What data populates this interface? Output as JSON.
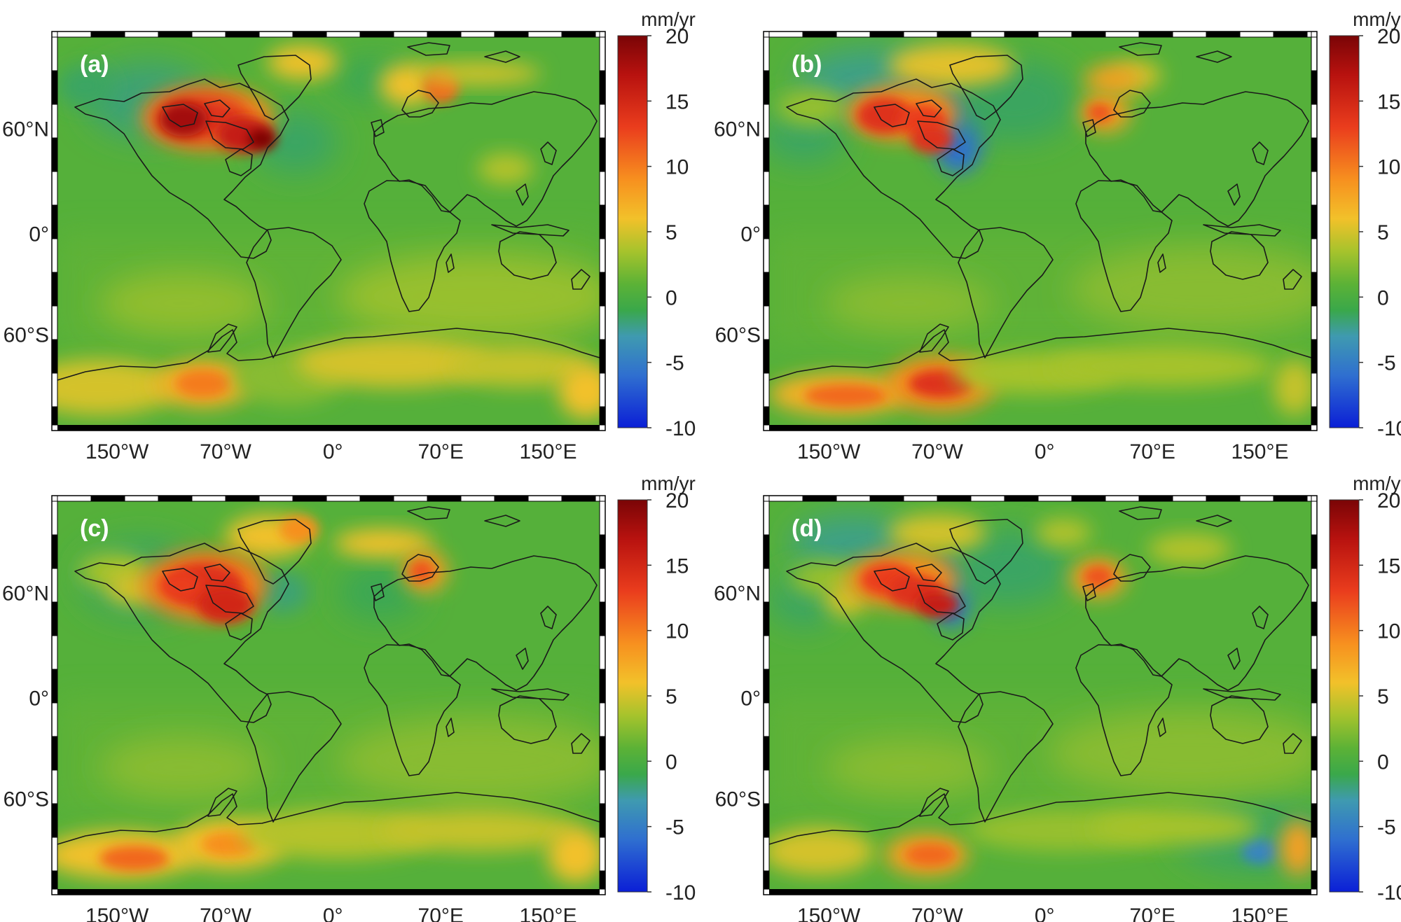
{
  "figure": {
    "panels": [
      {
        "id": "a",
        "label": "(a)"
      },
      {
        "id": "b",
        "label": "(b)"
      },
      {
        "id": "c",
        "label": "(c)"
      },
      {
        "id": "d",
        "label": "(d)"
      }
    ],
    "colorbar": {
      "unit": "mm/yr",
      "ticks": [
        "20",
        "15",
        "10",
        "5",
        "0",
        "-5",
        "-10"
      ],
      "range": [
        -10,
        20
      ],
      "stops": [
        {
          "v": -10,
          "c": "#0b1fd6"
        },
        {
          "v": -6,
          "c": "#2f6fd0"
        },
        {
          "v": -3,
          "c": "#3f9ab0"
        },
        {
          "v": -1,
          "c": "#3aa84a"
        },
        {
          "v": 1,
          "c": "#5cb236"
        },
        {
          "v": 3.5,
          "c": "#a6c32c"
        },
        {
          "v": 6,
          "c": "#f2c12a"
        },
        {
          "v": 9,
          "c": "#f7901f"
        },
        {
          "v": 13,
          "c": "#ea3d1d"
        },
        {
          "v": 17,
          "c": "#b8120f"
        },
        {
          "v": 20,
          "c": "#7a0506"
        }
      ]
    },
    "axes": {
      "lat_ticks": [
        "60°N",
        "0°",
        "60°S"
      ],
      "lon_ticks": [
        "150°W",
        "70°W",
        "0°",
        "70°E",
        "150°E"
      ]
    },
    "colors": {
      "ocean_base": "#59b239",
      "coastline": "#1a1a1a",
      "frame_dark": "#000000",
      "frame_light": "#ffffff"
    }
  }
}
